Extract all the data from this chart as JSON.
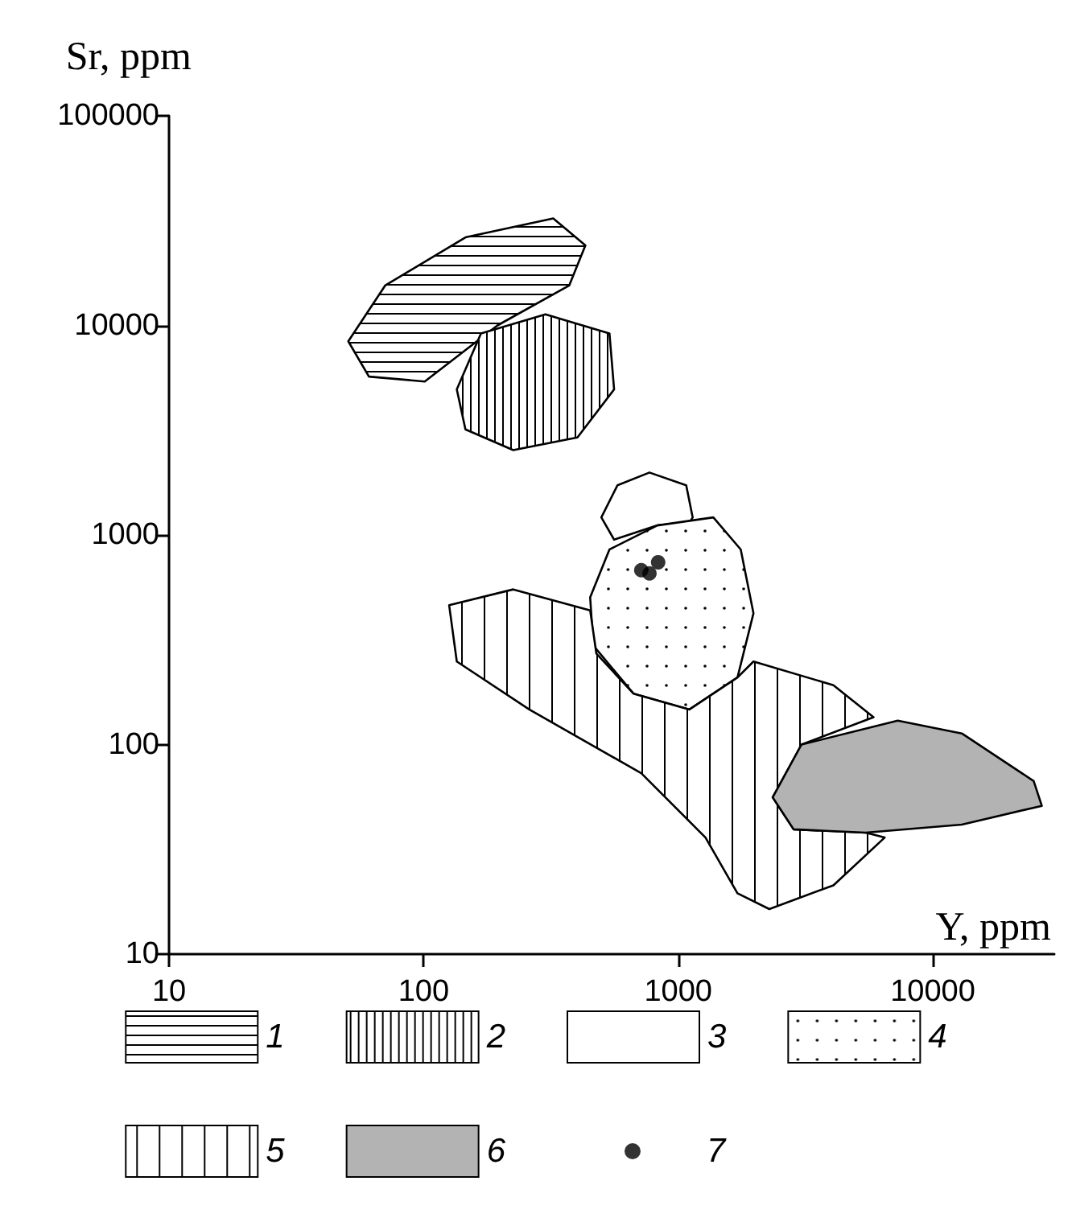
{
  "chart_data": {
    "type": "area",
    "xlabel": "Y, ppm",
    "ylabel": "Sr, ppm",
    "log": "xy",
    "grid": false,
    "legend": "bottom",
    "xlim": [
      10,
      30000
    ],
    "xticks": [
      10,
      100,
      1000,
      10000
    ],
    "ylim": [
      10,
      100000
    ],
    "yticks": [
      10,
      100,
      1000,
      10000,
      100000
    ],
    "series": [
      {
        "name": "1",
        "color": "#000000",
        "x": [
          50.6,
          70.6,
          146,
          323,
          432,
          373,
          195,
          101,
          61
        ],
        "values": [
          8400,
          15500,
          26300,
          32400,
          24100,
          15500,
          10000,
          5400,
          5700
        ]
      },
      {
        "name": "2",
        "color": "#000000",
        "x": [
          135,
          168,
          301,
          537,
          560,
          402,
          225,
          146
        ],
        "values": [
          4950,
          9160,
          11300,
          9160,
          4950,
          2920,
          2540,
          3190
        ]
      },
      {
        "name": "3",
        "color": "#ffffff",
        "x": [
          499,
          577,
          771,
          1075,
          1140,
          1110,
          828,
          560
        ],
        "values": [
          1213,
          1725,
          1986,
          1725,
          1213,
          1150,
          1111,
          950
        ]
      },
      {
        "name": "4",
        "color": "#000000",
        "x": [
          451,
          537,
          828,
          1374,
          1760,
          1975,
          1709,
          1107,
          667,
          464
        ],
        "values": [
          504,
          853,
          1111,
          1213,
          853,
          423,
          209,
          147,
          175,
          297
        ]
      },
      {
        "name": "5",
        "color": "#000000",
        "x": [
          126,
          225,
          451,
          477,
          667,
          1107,
          1709,
          1975,
          4070,
          5850,
          3050,
          2350,
          2840,
          5450,
          6470,
          4070,
          2280,
          1709,
          1280,
          716,
          260,
          135
        ],
        "values": [
          462,
          550,
          437,
          272,
          175,
          147,
          209,
          249,
          192,
          135,
          100,
          56,
          39.4,
          38,
          36,
          21.3,
          16.4,
          19.5,
          36,
          73,
          147,
          249
        ]
      },
      {
        "name": "6",
        "color": "#b3b3b3",
        "x": [
          2350,
          3050,
          7280,
          13000,
          24900,
          26800,
          13000,
          5450,
          2840
        ],
        "values": [
          56,
          100,
          130,
          113,
          67,
          51,
          41.5,
          38,
          39.4
        ]
      },
      {
        "name": "7",
        "type": "scatter",
        "marker": "circle",
        "color": "#000000",
        "x": [
          716,
          771,
          834
        ],
        "values": [
          679,
          656,
          741
        ]
      }
    ]
  }
}
